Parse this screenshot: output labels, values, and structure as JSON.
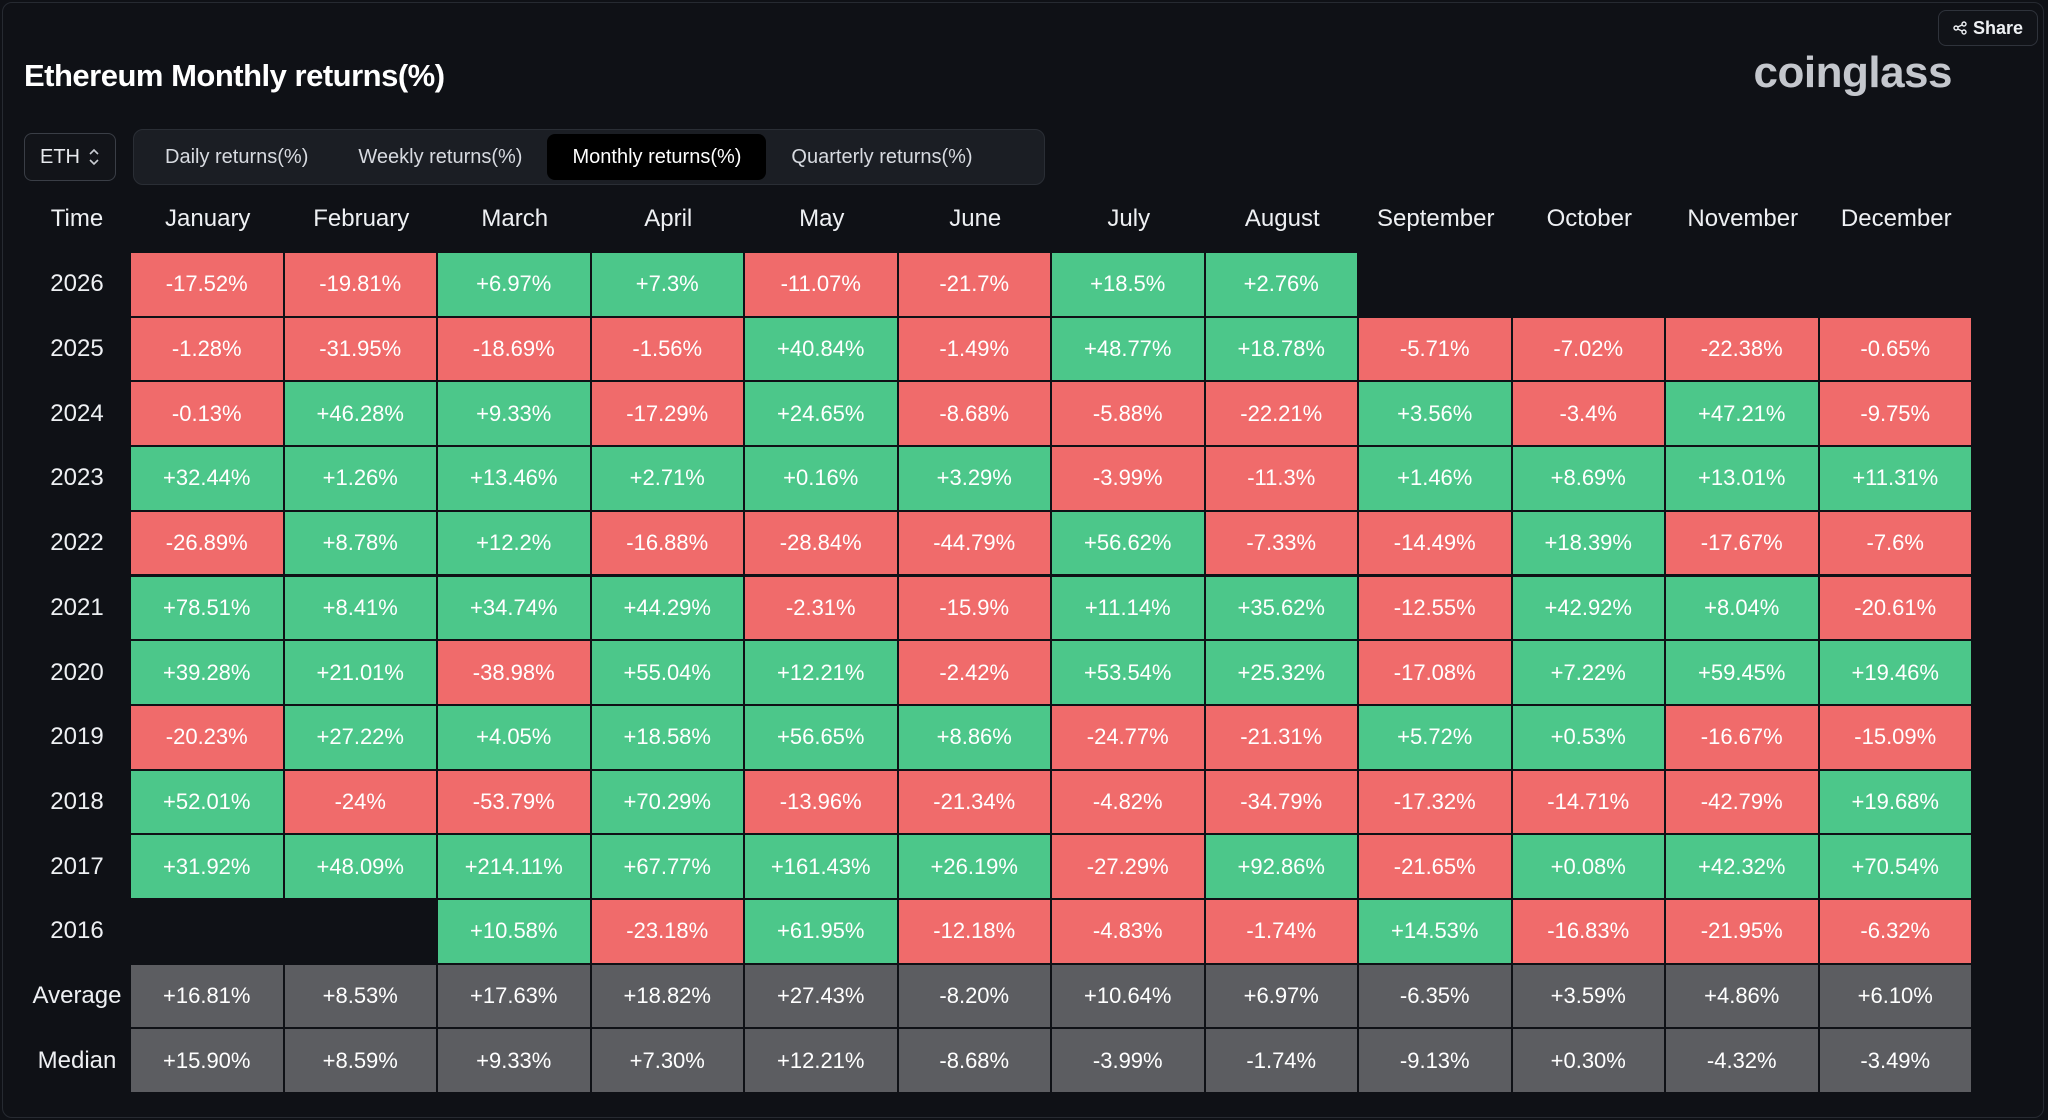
{
  "header": {
    "title": "Ethereum Monthly returns(%)",
    "brand": "coinglass",
    "share_label": "Share"
  },
  "coin_select": {
    "value": "ETH"
  },
  "tabs": [
    {
      "label": "Daily returns(%)",
      "active": false
    },
    {
      "label": "Weekly returns(%)",
      "active": false
    },
    {
      "label": "Monthly returns(%)",
      "active": true
    },
    {
      "label": "Quarterly returns(%)",
      "active": false
    }
  ],
  "colors": {
    "positive": "#4cc78a",
    "negative": "#f06b6b",
    "summary": "#5c5d61"
  },
  "chart_data": {
    "type": "heatmap",
    "corner_label": "Time",
    "columns": [
      "January",
      "February",
      "March",
      "April",
      "May",
      "June",
      "July",
      "August",
      "September",
      "October",
      "November",
      "December"
    ],
    "rows": [
      {
        "label": "2026",
        "kind": "year",
        "values": [
          "-17.52%",
          "-19.81%",
          "+6.97%",
          "+7.3%",
          "-11.07%",
          "-21.7%",
          "+18.5%",
          "+2.76%",
          "",
          "",
          "",
          ""
        ]
      },
      {
        "label": "2025",
        "kind": "year",
        "values": [
          "-1.28%",
          "-31.95%",
          "-18.69%",
          "-1.56%",
          "+40.84%",
          "-1.49%",
          "+48.77%",
          "+18.78%",
          "-5.71%",
          "-7.02%",
          "-22.38%",
          "-0.65%"
        ]
      },
      {
        "label": "2024",
        "kind": "year",
        "values": [
          "-0.13%",
          "+46.28%",
          "+9.33%",
          "-17.29%",
          "+24.65%",
          "-8.68%",
          "-5.88%",
          "-22.21%",
          "+3.56%",
          "-3.4%",
          "+47.21%",
          "-9.75%"
        ]
      },
      {
        "label": "2023",
        "kind": "year",
        "values": [
          "+32.44%",
          "+1.26%",
          "+13.46%",
          "+2.71%",
          "+0.16%",
          "+3.29%",
          "-3.99%",
          "-11.3%",
          "+1.46%",
          "+8.69%",
          "+13.01%",
          "+11.31%"
        ]
      },
      {
        "label": "2022",
        "kind": "year",
        "values": [
          "-26.89%",
          "+8.78%",
          "+12.2%",
          "-16.88%",
          "-28.84%",
          "-44.79%",
          "+56.62%",
          "-7.33%",
          "-14.49%",
          "+18.39%",
          "-17.67%",
          "-7.6%"
        ]
      },
      {
        "label": "2021",
        "kind": "year",
        "values": [
          "+78.51%",
          "+8.41%",
          "+34.74%",
          "+44.29%",
          "-2.31%",
          "-15.9%",
          "+11.14%",
          "+35.62%",
          "-12.55%",
          "+42.92%",
          "+8.04%",
          "-20.61%"
        ]
      },
      {
        "label": "2020",
        "kind": "year",
        "values": [
          "+39.28%",
          "+21.01%",
          "-38.98%",
          "+55.04%",
          "+12.21%",
          "-2.42%",
          "+53.54%",
          "+25.32%",
          "-17.08%",
          "+7.22%",
          "+59.45%",
          "+19.46%"
        ]
      },
      {
        "label": "2019",
        "kind": "year",
        "values": [
          "-20.23%",
          "+27.22%",
          "+4.05%",
          "+18.58%",
          "+56.65%",
          "+8.86%",
          "-24.77%",
          "-21.31%",
          "+5.72%",
          "+0.53%",
          "-16.67%",
          "-15.09%"
        ]
      },
      {
        "label": "2018",
        "kind": "year",
        "values": [
          "+52.01%",
          "-24%",
          "-53.79%",
          "+70.29%",
          "-13.96%",
          "-21.34%",
          "-4.82%",
          "-34.79%",
          "-17.32%",
          "-14.71%",
          "-42.79%",
          "+19.68%"
        ]
      },
      {
        "label": "2017",
        "kind": "year",
        "values": [
          "+31.92%",
          "+48.09%",
          "+214.11%",
          "+67.77%",
          "+161.43%",
          "+26.19%",
          "-27.29%",
          "+92.86%",
          "-21.65%",
          "+0.08%",
          "+42.32%",
          "+70.54%"
        ]
      },
      {
        "label": "2016",
        "kind": "year",
        "values": [
          "",
          "",
          "+10.58%",
          "-23.18%",
          "+61.95%",
          "-12.18%",
          "-4.83%",
          "-1.74%",
          "+14.53%",
          "-16.83%",
          "-21.95%",
          "-6.32%"
        ]
      },
      {
        "label": "Average",
        "kind": "stat",
        "values": [
          "+16.81%",
          "+8.53%",
          "+17.63%",
          "+18.82%",
          "+27.43%",
          "-8.20%",
          "+10.64%",
          "+6.97%",
          "-6.35%",
          "+3.59%",
          "+4.86%",
          "+6.10%"
        ]
      },
      {
        "label": "Median",
        "kind": "stat",
        "values": [
          "+15.90%",
          "+8.59%",
          "+9.33%",
          "+7.30%",
          "+12.21%",
          "-8.68%",
          "-3.99%",
          "-1.74%",
          "-9.13%",
          "+0.30%",
          "-4.32%",
          "-3.49%"
        ]
      }
    ]
  }
}
